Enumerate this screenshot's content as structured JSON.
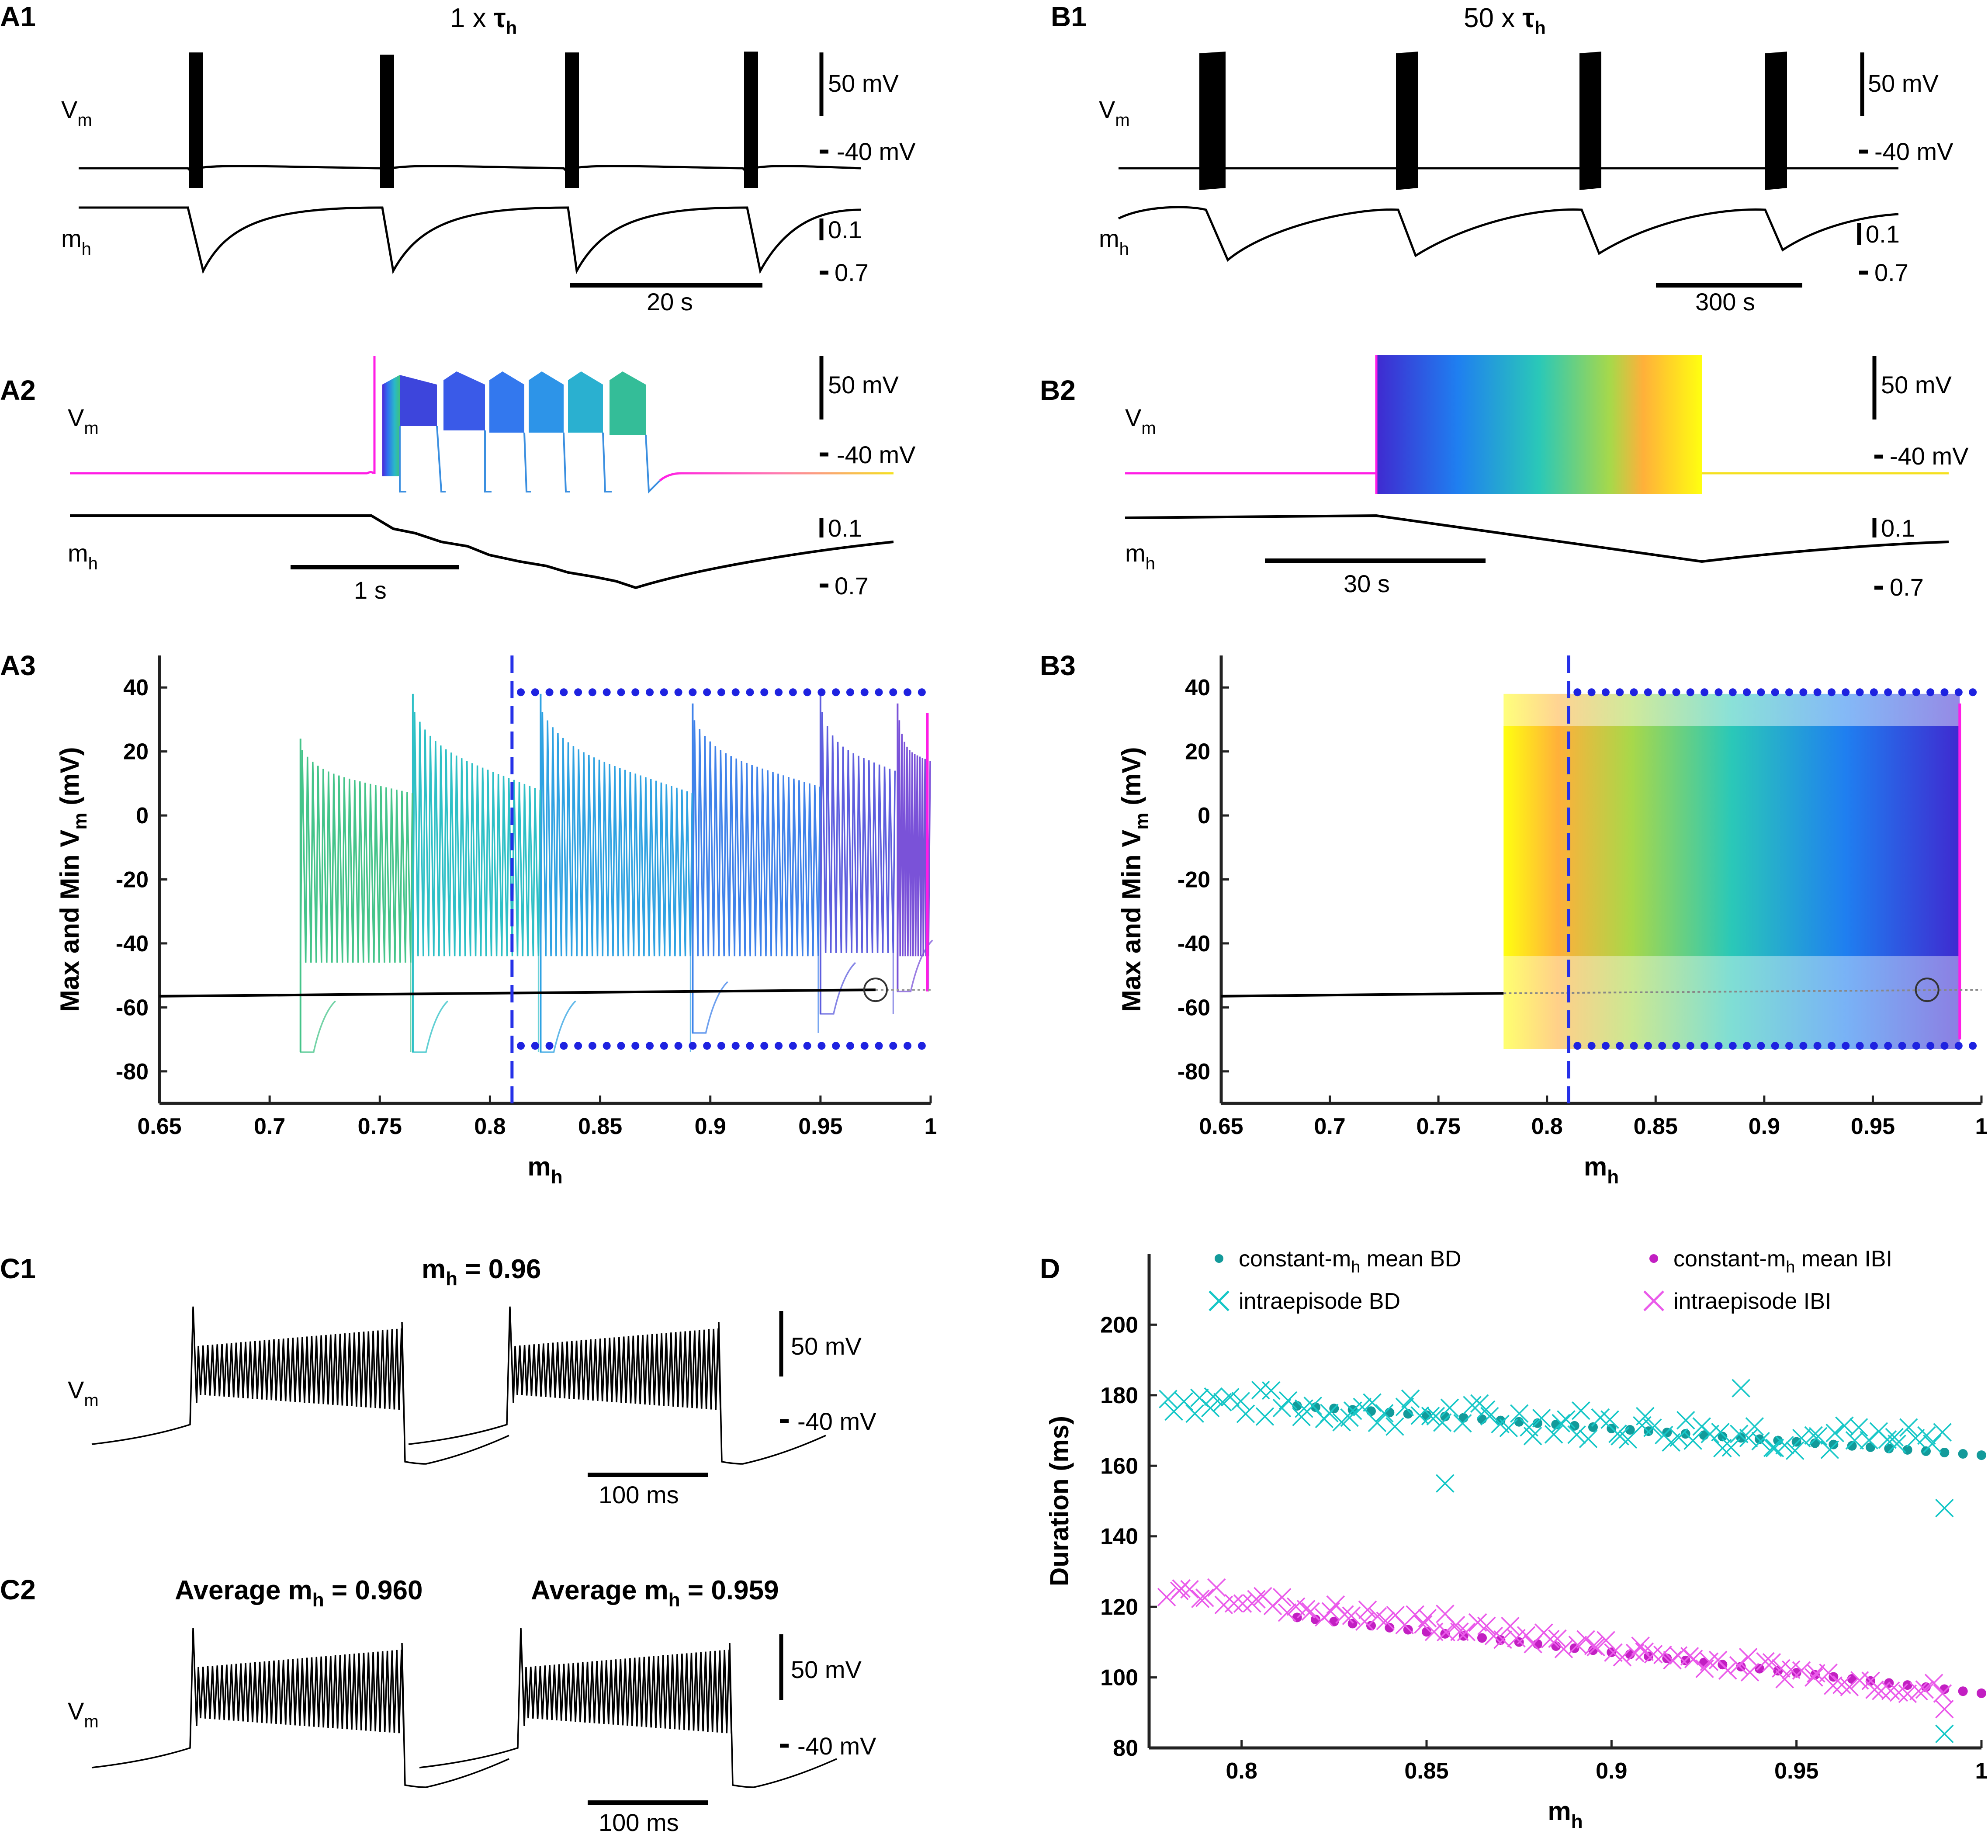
{
  "panels": {
    "A1": {
      "label": "A1",
      "title_prefix": "1 x ",
      "title_sym": "τ",
      "title_sub": "h",
      "vm": "V",
      "vm_sub": "m",
      "mh": "m",
      "mh_sub": "h",
      "sb_v": "50 mV",
      "ref_v": "-40 mV",
      "sb_m": "0.1",
      "ref_m": "0.7",
      "sb_t": "20 s"
    },
    "B1": {
      "label": "B1",
      "title_prefix": "50 x ",
      "title_sym": "τ",
      "title_sub": "h",
      "vm": "V",
      "vm_sub": "m",
      "mh": "m",
      "mh_sub": "h",
      "sb_v": "50 mV",
      "ref_v": "-40 mV",
      "sb_m": "0.1",
      "ref_m": "0.7",
      "sb_t": "300 s"
    },
    "A2": {
      "label": "A2",
      "vm": "V",
      "vm_sub": "m",
      "mh": "m",
      "mh_sub": "h",
      "sb_v": "50 mV",
      "ref_v": "-40 mV",
      "sb_m": "0.1",
      "ref_m": "0.7",
      "sb_t": "1 s"
    },
    "B2": {
      "label": "B2",
      "vm": "V",
      "vm_sub": "m",
      "mh": "m",
      "mh_sub": "h",
      "sb_v": "50 mV",
      "ref_v": "-40 mV",
      "sb_m": "0.1",
      "ref_m": "0.7",
      "sb_t": "30 s"
    },
    "A3": {
      "label": "A3"
    },
    "B3": {
      "label": "B3"
    },
    "C1": {
      "label": "C1",
      "title_prefix": "m",
      "title_sub": "h",
      "title_suffix": " = 0.96",
      "vm": "V",
      "vm_sub": "m",
      "sb_v": "50 mV",
      "ref_v": "-40 mV",
      "sb_t": "100 ms"
    },
    "C2": {
      "label": "C2",
      "title1_prefix": "Average m",
      "title1_sub": "h",
      "title1_suffix": " = 0.960",
      "title2_prefix": "Average m",
      "title2_sub": "h",
      "title2_suffix": " = 0.959",
      "vm": "V",
      "vm_sub": "m",
      "sb_v": "50 mV",
      "ref_v": "-40 mV",
      "sb_t": "100 ms"
    },
    "D": {
      "label": "D",
      "legend": {
        "bd_mean_prefix": "constant-m",
        "bd_mean_sub": "h",
        "bd_mean_suffix": " mean BD",
        "ibi_mean_prefix": "constant-m",
        "ibi_mean_sub": "h",
        "ibi_mean_suffix": " mean IBI",
        "bd_intra": "intraepisode BD",
        "ibi_intra": "intraepisode IBI"
      }
    }
  },
  "colors": {
    "bd": "#17c7c7",
    "bd_mean": "#139a9a",
    "ibi": "#ea5aea",
    "ibi_mean": "#c21fc2",
    "dots": "#1e22e0",
    "vline": "#2530e8",
    "magenta": "#ff1de5"
  },
  "chart_data": [
    {
      "id": "A3",
      "type": "line",
      "ylabel_prefix": "Max and Min V",
      "ylabel_sub": "m",
      "ylabel_suffix": " (mV)",
      "xlabel": "m",
      "xlabel_sub": "h",
      "xlim": [
        0.65,
        1.0
      ],
      "ylim": [
        -90,
        50
      ],
      "xticks": [
        0.65,
        0.7,
        0.75,
        0.8,
        0.85,
        0.9,
        0.95,
        1
      ],
      "xtick_labels": [
        "0.65",
        "0.7",
        "0.75",
        "0.8",
        "0.85",
        "0.9",
        "0.95",
        "1"
      ],
      "yticks": [
        -80,
        -60,
        -40,
        -20,
        0,
        20,
        40
      ],
      "ytick_labels": [
        "-80",
        "-60",
        "-40",
        "-20",
        "0",
        "20",
        "40"
      ],
      "vline_x": 0.81,
      "upper_dots_y": 38.5,
      "lower_dots_y": -72,
      "dots_xrange": [
        0.81,
        1.0
      ],
      "baseline": {
        "x0": 0.65,
        "y0": -56.5,
        "x1": 0.975,
        "y1": -54.5
      },
      "marker": {
        "x": 0.975,
        "y": -54.5
      },
      "bursts": [
        {
          "start": 0.985,
          "end": 0.999,
          "peak": 35,
          "max_end": 17,
          "min": -44,
          "trough": -55,
          "color": "#7a52d8"
        },
        {
          "start": 0.95,
          "end": 0.983,
          "peak": 38,
          "max_end": 14,
          "min": -43,
          "trough": -62,
          "color": "#5e5ede"
        },
        {
          "start": 0.892,
          "end": 0.949,
          "peak": 35,
          "max_end": 9,
          "min": -44,
          "trough": -68,
          "color": "#3f82ea"
        },
        {
          "start": 0.823,
          "end": 0.891,
          "peak": 38,
          "max_end": 7,
          "min": -44,
          "trough": -74,
          "color": "#2fa2e2"
        },
        {
          "start": 0.765,
          "end": 0.822,
          "peak": 38,
          "max_end": 8,
          "min": -44,
          "trough": -74,
          "color": "#2ec0c6"
        },
        {
          "start": 0.714,
          "end": 0.764,
          "peak": 24,
          "max_end": 7,
          "min": -46,
          "trough": -74,
          "color": "#45c48a"
        }
      ]
    },
    {
      "id": "B3",
      "type": "line",
      "ylabel_prefix": "Max and Min V",
      "ylabel_sub": "m",
      "ylabel_suffix": " (mV)",
      "xlabel": "m",
      "xlabel_sub": "h",
      "xlim": [
        0.65,
        1.0
      ],
      "ylim": [
        -90,
        50
      ],
      "xticks": [
        0.65,
        0.7,
        0.75,
        0.8,
        0.85,
        0.9,
        0.95,
        1
      ],
      "xtick_labels": [
        "0.65",
        "0.7",
        "0.75",
        "0.8",
        "0.85",
        "0.9",
        "0.95",
        "1"
      ],
      "yticks": [
        -80,
        -60,
        -40,
        -20,
        0,
        20,
        40
      ],
      "ytick_labels": [
        "-80",
        "-60",
        "-40",
        "-20",
        "0",
        "20",
        "40"
      ],
      "vline_x": 0.81,
      "upper_dots_y": 38.5,
      "lower_dots_y": -72,
      "dots_xrange": [
        0.81,
        1.0
      ],
      "baseline": {
        "x0": 0.65,
        "y0": -56.5,
        "x1": 0.975,
        "y1": -54.5
      },
      "marker": {
        "x": 0.975,
        "y": -54.5
      },
      "band": {
        "x0": 0.78,
        "x1": 0.99,
        "max_top": 38,
        "max_low": 8,
        "min_top": -44,
        "min_low": -73
      }
    },
    {
      "id": "D",
      "type": "scatter",
      "ylabel": "Duration (ms)",
      "xlabel": "m",
      "xlabel_sub": "h",
      "xlim": [
        0.775,
        1.0
      ],
      "ylim": [
        80,
        220
      ],
      "xticks": [
        0.8,
        0.85,
        0.9,
        0.95,
        1
      ],
      "xtick_labels": [
        "0.8",
        "0.85",
        "0.9",
        "0.95",
        "1"
      ],
      "yticks": [
        80,
        100,
        120,
        140,
        160,
        180,
        200
      ],
      "ytick_labels": [
        "80",
        "100",
        "120",
        "140",
        "160",
        "180",
        "200"
      ],
      "series": [
        {
          "name": "constant-mh mean BD",
          "kind": "dot",
          "x_start": 0.815,
          "x_end": 1.0,
          "step": 0.005,
          "y_start": 177,
          "y_end": 163
        },
        {
          "name": "constant-mh mean IBI",
          "kind": "dot",
          "x_start": 0.815,
          "x_end": 1.0,
          "step": 0.005,
          "y_start": 117,
          "y_end": 95.5
        },
        {
          "name": "intraepisode BD",
          "kind": "cross",
          "x_start": 0.78,
          "x_end": 0.99,
          "y_start": 179,
          "y_end": 166,
          "outliers": [
            [
              0.99,
              148
            ],
            [
              0.99,
              84
            ],
            [
              0.93,
              165
            ],
            [
              0.935,
              182
            ],
            [
              0.855,
              155
            ]
          ]
        },
        {
          "name": "intraepisode IBI",
          "kind": "cross",
          "x_start": 0.78,
          "x_end": 0.99,
          "y_start": 125,
          "y_end": 96,
          "outliers": [
            [
              0.855,
              118
            ],
            [
              0.99,
              91
            ]
          ]
        }
      ]
    }
  ]
}
